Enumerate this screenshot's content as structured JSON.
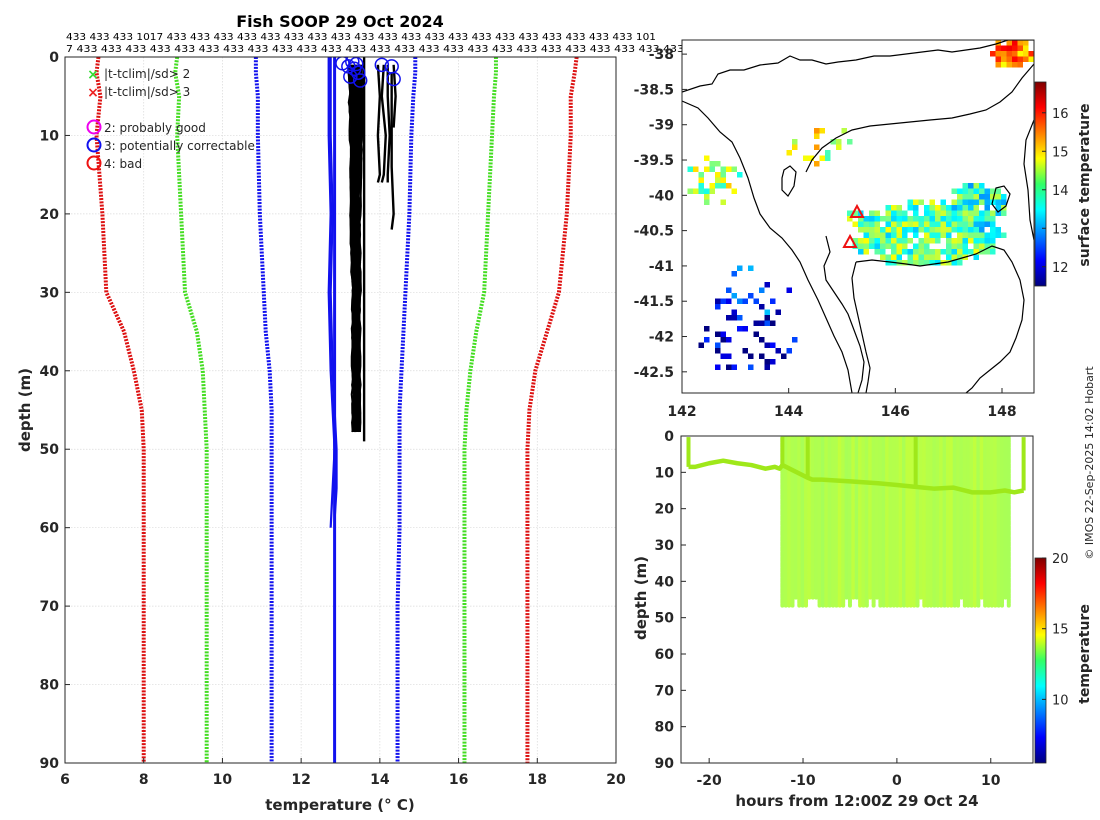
{
  "figure": {
    "credit": "© IMOS 22-Sep-2025 14:02 Hobart"
  },
  "chart_data": [
    {
      "id": "profile",
      "type": "line",
      "title": "Fish SOOP 29 Oct 2024",
      "xlabel": "temperature (° C)",
      "ylabel": "depth (m)",
      "xlim": [
        6,
        20
      ],
      "ylim": [
        0,
        90
      ],
      "y_reversed": true,
      "grid": true,
      "xticks": [
        6,
        8,
        10,
        12,
        14,
        16,
        18,
        20
      ],
      "yticks": [
        0,
        10,
        20,
        30,
        40,
        50,
        60,
        70,
        80,
        90
      ],
      "count_rows": [
        "433 433 433 1017 433 433 433 433 433 433 433 433 433 433 433 433 433 433 433 433 433 433 433 433 101",
        "7 433 433 433 433 433 433 433 433 433 433 433 433 433 433 433 433 433 433 433 433 433 433 433 433 433"
      ],
      "legend_markers": [
        {
          "symbol": "x",
          "color": "#33dd33",
          "label": "|t-tclim|/sd> 2"
        },
        {
          "symbol": "x",
          "color": "#ee2222",
          "label": "|t-tclim|/sd> 3"
        }
      ],
      "legend_flags": [
        {
          "symbol": "o",
          "color": "#ee00ee",
          "label": "2: probably good"
        },
        {
          "symbol": "o",
          "color": "#1111ee",
          "label": "3: potentially correctable"
        },
        {
          "symbol": "o",
          "color": "#ee1111",
          "label": "4: bad"
        }
      ],
      "climatology": {
        "depth": [
          0,
          2,
          5,
          10,
          20,
          30,
          35,
          40,
          45,
          50,
          60,
          70,
          80,
          90
        ],
        "minus3sd": [
          6.85,
          6.8,
          6.9,
          6.8,
          6.95,
          7.05,
          7.5,
          7.75,
          7.95,
          8.0,
          8.0,
          8.0,
          8.0,
          8.0
        ],
        "minus2sd": [
          8.85,
          8.8,
          8.9,
          8.85,
          8.95,
          9.05,
          9.35,
          9.5,
          9.55,
          9.6,
          9.6,
          9.6,
          9.6,
          9.6
        ],
        "minus1sd": [
          10.85,
          10.85,
          10.9,
          10.9,
          10.95,
          11.05,
          11.1,
          11.2,
          11.25,
          11.25,
          11.25,
          11.25,
          11.25,
          11.25
        ],
        "plus1sd": [
          14.9,
          14.9,
          14.85,
          14.8,
          14.75,
          14.65,
          14.6,
          14.55,
          14.5,
          14.5,
          14.5,
          14.45,
          14.45,
          14.45
        ],
        "plus2sd": [
          16.95,
          16.95,
          16.9,
          16.85,
          16.75,
          16.65,
          16.45,
          16.3,
          16.2,
          16.15,
          16.15,
          16.15,
          16.15,
          16.15
        ],
        "plus3sd": [
          19.0,
          18.95,
          18.85,
          18.85,
          18.75,
          18.55,
          18.25,
          17.95,
          17.8,
          17.75,
          17.75,
          17.75,
          17.75,
          17.75
        ],
        "colors": {
          "sd1": "#1111ee",
          "sd2": "#44dd22",
          "sd3": "#dd1111"
        }
      },
      "mean_profile": {
        "depth": [
          0,
          90
        ],
        "temperature": [
          12.85,
          12.85
        ],
        "color": "#1111ee"
      },
      "profiles_blue": {
        "color": "#1111ee",
        "lines": [
          {
            "depth": [
              0,
              10,
              20,
              30,
              40,
              50,
              55,
              60
            ],
            "temperature": [
              12.7,
              12.7,
              12.75,
              12.7,
              12.75,
              12.85,
              12.8,
              12.75
            ]
          },
          {
            "depth": [
              0,
              10,
              20,
              30,
              40,
              50,
              55,
              59
            ],
            "temperature": [
              12.75,
              12.75,
              12.8,
              12.75,
              12.8,
              12.9,
              12.9,
              12.85
            ]
          }
        ]
      },
      "profiles_black": {
        "color": "#000000",
        "band_left": [
          13.2,
          13.25,
          13.25,
          13.3,
          13.3,
          13.3,
          13.3
        ],
        "band_right": [
          13.55,
          13.55,
          13.5,
          13.5,
          13.5,
          13.5,
          13.5
        ],
        "band_depth": [
          1,
          10,
          20,
          30,
          40,
          47,
          48
        ],
        "extra_lines": [
          {
            "depth": [
              1,
              5,
              10,
              15,
              16
            ],
            "temperature": [
              13.95,
              14.0,
              13.95,
              14.0,
              13.95
            ]
          },
          {
            "depth": [
              1,
              5,
              10,
              15,
              16
            ],
            "temperature": [
              14.1,
              14.05,
              14.15,
              14.1,
              14.05
            ]
          },
          {
            "depth": [
              1,
              5,
              10,
              15,
              16
            ],
            "temperature": [
              14.2,
              14.2,
              14.25,
              14.2,
              14.2
            ]
          },
          {
            "depth": [
              2,
              8,
              14,
              20,
              22
            ],
            "temperature": [
              14.3,
              14.3,
              14.3,
              14.35,
              14.3
            ]
          },
          {
            "depth": [
              1,
              5,
              9
            ],
            "temperature": [
              14.35,
              14.4,
              14.35
            ]
          },
          {
            "depth": [
              0,
              40,
              47,
              49
            ],
            "temperature": [
              13.6,
              13.6,
              13.6,
              13.6
            ]
          }
        ]
      },
      "flag_circles": {
        "color": "#1111ee",
        "points": [
          {
            "t": 13.05,
            "d": 0.8
          },
          {
            "t": 13.2,
            "d": 1.2
          },
          {
            "t": 13.3,
            "d": 0.6
          },
          {
            "t": 13.35,
            "d": 1.5
          },
          {
            "t": 13.4,
            "d": 0.9
          },
          {
            "t": 13.45,
            "d": 2.0
          },
          {
            "t": 13.5,
            "d": 3.0
          },
          {
            "t": 14.05,
            "d": 1.0
          },
          {
            "t": 14.3,
            "d": 1.2
          },
          {
            "t": 14.35,
            "d": 2.8
          },
          {
            "t": 13.25,
            "d": 2.5
          }
        ]
      }
    },
    {
      "id": "map",
      "type": "heatmap",
      "xlim": [
        142,
        148.6
      ],
      "ylim": [
        -42.8,
        -37.8
      ],
      "xticks": [
        142,
        144,
        146,
        148
      ],
      "yticks": [
        -38,
        -38.5,
        -39,
        -39.5,
        -40,
        -40.5,
        -41,
        -41.5,
        -42,
        -42.5
      ],
      "colorbar": {
        "label": "surface temperature",
        "range": [
          11.5,
          16.8
        ],
        "ticks": [
          12,
          13,
          14,
          15,
          16
        ]
      },
      "markers": [
        {
          "lon": 145.3,
          "lat": -40.3,
          "symbol": "triangle",
          "color": "#ee1111"
        },
        {
          "lon": 144.95,
          "lat": -40.65,
          "symbol": "triangle",
          "color": "#ee1111"
        }
      ],
      "sst_clusters": [
        {
          "lon": 146.6,
          "lat": -40.55,
          "rlon": 1.4,
          "rlat": 0.45,
          "t": 14.0,
          "n": 520
        },
        {
          "lon": 147.5,
          "lat": -40.2,
          "rlon": 0.55,
          "rlat": 0.35,
          "t": 13.7,
          "n": 160
        },
        {
          "lon": 148.2,
          "lat": -38.0,
          "rlon": 0.35,
          "rlat": 0.18,
          "t": 15.4,
          "n": 80
        },
        {
          "lon": 142.6,
          "lat": -39.8,
          "rlon": 0.5,
          "rlat": 0.35,
          "t": 14.3,
          "n": 40
        },
        {
          "lon": 143.2,
          "lat": -42.1,
          "rlon": 0.9,
          "rlat": 0.4,
          "t": 11.8,
          "n": 45
        },
        {
          "lon": 143.3,
          "lat": -41.4,
          "rlon": 0.7,
          "rlat": 0.4,
          "t": 12.4,
          "n": 25
        },
        {
          "lon": 144.6,
          "lat": -39.3,
          "rlon": 0.7,
          "rlat": 0.3,
          "t": 14.6,
          "n": 20
        },
        {
          "lon": 145.3,
          "lat": -40.3,
          "rlon": 0.15,
          "rlat": 0.12,
          "t": 13.9,
          "n": 10
        }
      ]
    },
    {
      "id": "section",
      "type": "scatter",
      "xlabel": "hours from 12:00Z 29 Oct 24",
      "ylabel": "depth (m)",
      "xlim": [
        -23,
        14.5
      ],
      "ylim": [
        0,
        90
      ],
      "y_reversed": true,
      "xticks": [
        -20,
        -10,
        0,
        10
      ],
      "yticks": [
        0,
        10,
        20,
        30,
        40,
        50,
        60,
        70,
        80,
        90
      ],
      "colorbar": {
        "label": "temperature",
        "range": [
          5.5,
          20
        ],
        "ticks": [
          10,
          15,
          20
        ]
      },
      "surface_track": {
        "hours": [
          -22.2,
          -21.5,
          -20,
          -18.5,
          -17,
          -15.5,
          -14,
          -13,
          -12.5,
          -12.2,
          -9.5,
          -9,
          -8,
          -5,
          -2,
          0,
          2,
          4,
          6,
          8,
          10,
          11.5,
          12.5,
          13.5
        ],
        "depth": [
          8.5,
          8.5,
          7.5,
          6.8,
          7.5,
          8.0,
          9.0,
          8.5,
          9.0,
          8.0,
          11.5,
          12.0,
          12.0,
          12.5,
          13.0,
          13.5,
          14.0,
          14.5,
          14.2,
          15.5,
          15.5,
          15.0,
          15.5,
          15.0
        ],
        "temperature": 13.6
      },
      "cast_hour_range": [
        -12.2,
        12.2
      ],
      "cast_max_depth": 48,
      "cast_temperature": 13.5
    }
  ]
}
